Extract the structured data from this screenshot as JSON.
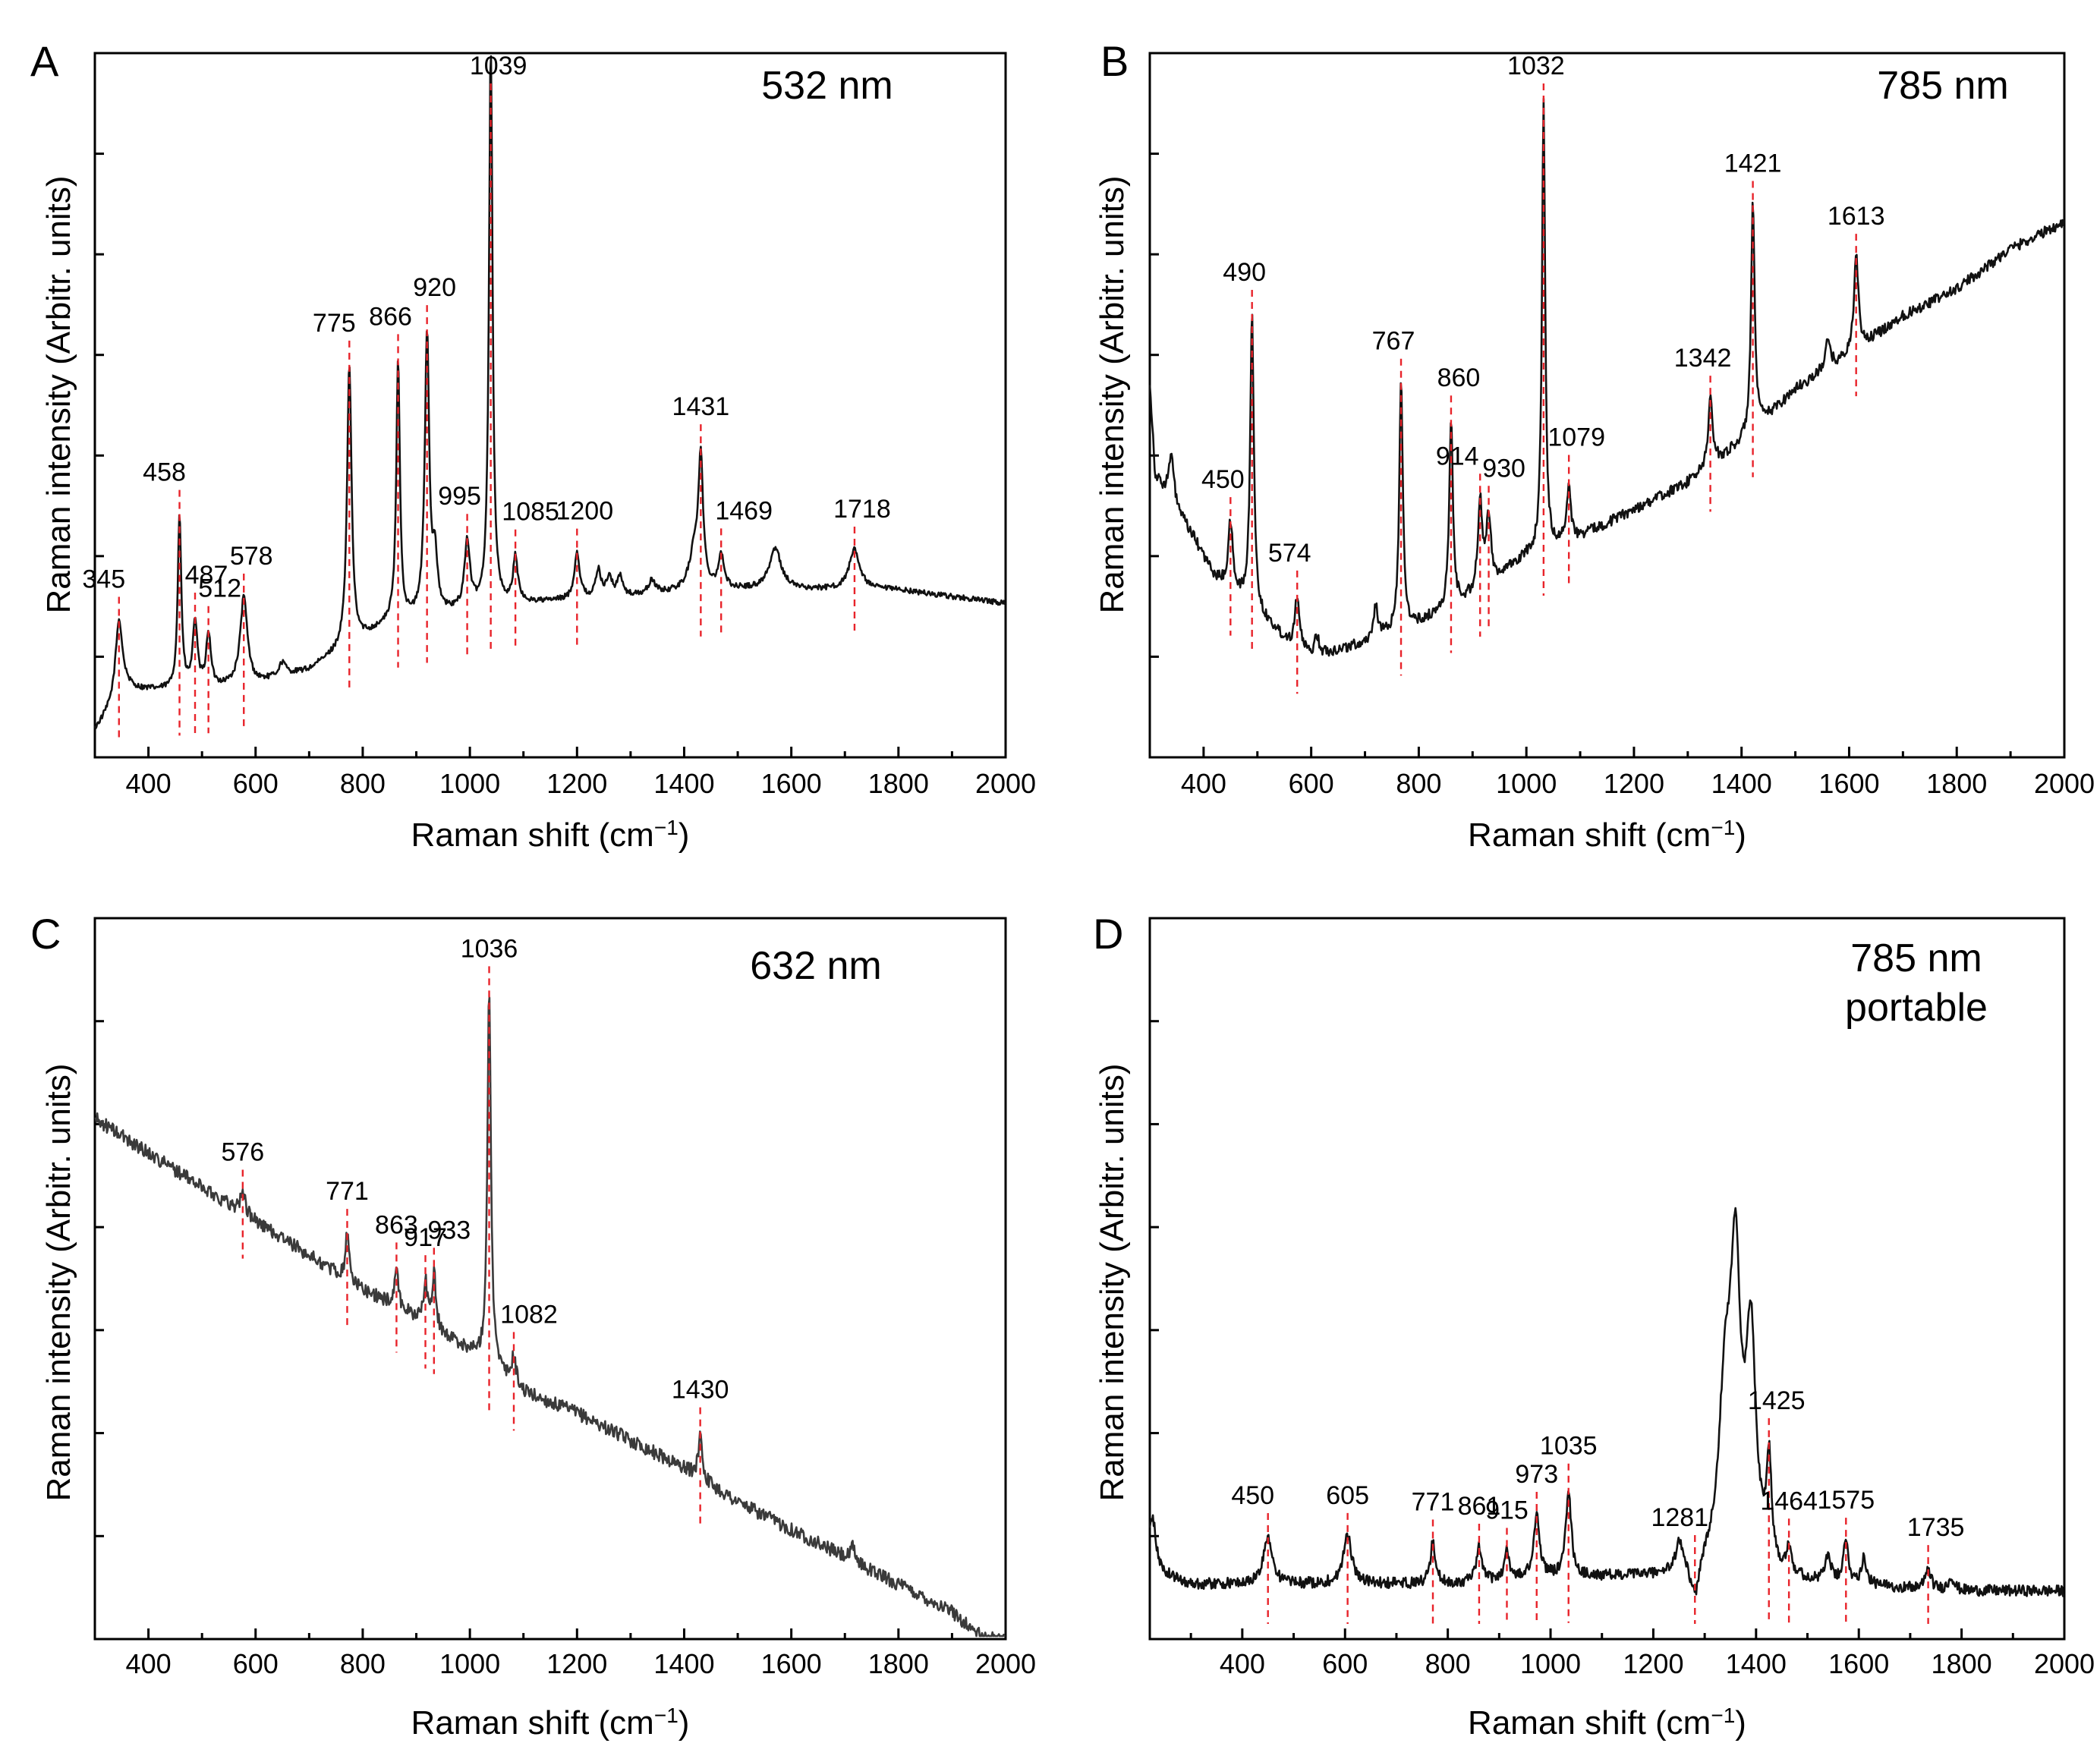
{
  "figure": {
    "x_axis_title_prefix": "Raman shift (cm",
    "x_axis_title_sup": "−1",
    "x_axis_title_suffix": ")",
    "y_axis_title": "Raman intensity (Arbitr. units)"
  },
  "chart_data": [
    {
      "panel": "A",
      "type": "line",
      "laser": "532 nm",
      "xlabel": "Raman shift (cm−1)",
      "ylabel": "Raman intensity (Arbitr. units)",
      "xlim": [
        300,
        2000
      ],
      "xticks": [
        400,
        600,
        800,
        1000,
        1200,
        1400,
        1600,
        1800,
        2000
      ],
      "ylim": [
        0,
        1
      ],
      "line_color": "#111111",
      "baseline": [
        [
          300,
          0.04
        ],
        [
          360,
          0.1
        ],
        [
          450,
          0.1
        ],
        [
          600,
          0.11
        ],
        [
          700,
          0.13
        ],
        [
          760,
          0.16
        ],
        [
          850,
          0.2
        ],
        [
          1000,
          0.22
        ],
        [
          1100,
          0.23
        ],
        [
          1300,
          0.24
        ],
        [
          1450,
          0.25
        ],
        [
          1600,
          0.25
        ],
        [
          1800,
          0.25
        ],
        [
          2000,
          0.23
        ]
      ],
      "bands": [
        [
          345,
          0.12,
          8
        ],
        [
          458,
          0.26,
          4
        ],
        [
          487,
          0.1,
          5
        ],
        [
          512,
          0.08,
          5
        ],
        [
          578,
          0.13,
          8
        ],
        [
          650,
          0.02,
          8
        ],
        [
          775,
          0.42,
          5
        ],
        [
          866,
          0.39,
          4
        ],
        [
          920,
          0.42,
          5
        ],
        [
          935,
          0.08,
          5
        ],
        [
          995,
          0.1,
          6
        ],
        [
          1039,
          0.84,
          4
        ],
        [
          1085,
          0.07,
          5
        ],
        [
          1200,
          0.07,
          6
        ],
        [
          1240,
          0.04,
          6
        ],
        [
          1260,
          0.03,
          6
        ],
        [
          1280,
          0.03,
          6
        ],
        [
          1340,
          0.02,
          8
        ],
        [
          1420,
          0.06,
          12
        ],
        [
          1431,
          0.18,
          5
        ],
        [
          1469,
          0.05,
          6
        ],
        [
          1570,
          0.06,
          14
        ],
        [
          1718,
          0.06,
          12
        ]
      ],
      "noise": 0.004,
      "peaks": [
        {
          "x": 345,
          "label": "345",
          "dx": -20,
          "dy": 30
        },
        {
          "x": 458,
          "label": "458",
          "dx": -20,
          "dy": 40
        },
        {
          "x": 487,
          "label": "487",
          "dx": 15,
          "dy": 30
        },
        {
          "x": 512,
          "label": "512",
          "dx": 15,
          "dy": 30
        },
        {
          "x": 578,
          "label": "578",
          "dx": 10,
          "dy": 30
        },
        {
          "x": 775,
          "label": "775",
          "dx": -20,
          "dy": 30
        },
        {
          "x": 866,
          "label": "866",
          "dx": -10,
          "dy": 30
        },
        {
          "x": 920,
          "label": "920",
          "dx": 10,
          "dy": 50
        },
        {
          "x": 995,
          "label": "995",
          "dx": -10,
          "dy": 30
        },
        {
          "x": 1039,
          "label": "1039",
          "dx": 10,
          "dy": 30
        },
        {
          "x": 1085,
          "label": "1085",
          "dx": 20,
          "dy": 30
        },
        {
          "x": 1200,
          "label": "1200",
          "dx": 10,
          "dy": 30
        },
        {
          "x": 1431,
          "label": "1431",
          "dx": 0,
          "dy": 30
        },
        {
          "x": 1469,
          "label": "1469",
          "dx": 30,
          "dy": 30
        },
        {
          "x": 1718,
          "label": "1718",
          "dx": 10,
          "dy": 30
        }
      ]
    },
    {
      "panel": "B",
      "type": "line",
      "laser": "785 nm",
      "xlabel": "Raman shift (cm−1)",
      "ylabel": "Raman intensity (Arbitr. units)",
      "xlim": [
        300,
        2000
      ],
      "xticks": [
        400,
        600,
        800,
        1000,
        1200,
        1400,
        1600,
        1800,
        2000
      ],
      "ylim": [
        0,
        1
      ],
      "line_color": "#111111",
      "baseline": [
        [
          300,
          0.56
        ],
        [
          310,
          0.42
        ],
        [
          340,
          0.38
        ],
        [
          380,
          0.33
        ],
        [
          420,
          0.27
        ],
        [
          480,
          0.23
        ],
        [
          560,
          0.17
        ],
        [
          600,
          0.15
        ],
        [
          700,
          0.17
        ],
        [
          800,
          0.2
        ],
        [
          900,
          0.24
        ],
        [
          1000,
          0.3
        ],
        [
          1100,
          0.33
        ],
        [
          1200,
          0.37
        ],
        [
          1300,
          0.41
        ],
        [
          1400,
          0.47
        ],
        [
          1500,
          0.55
        ],
        [
          1600,
          0.6
        ],
        [
          1700,
          0.66
        ],
        [
          1800,
          0.7
        ],
        [
          1900,
          0.76
        ],
        [
          2000,
          0.8
        ]
      ],
      "bands": [
        [
          340,
          0.07,
          6
        ],
        [
          450,
          0.1,
          5
        ],
        [
          490,
          0.44,
          4
        ],
        [
          574,
          0.08,
          5
        ],
        [
          610,
          0.03,
          5
        ],
        [
          720,
          0.05,
          5
        ],
        [
          767,
          0.37,
          4
        ],
        [
          860,
          0.28,
          4
        ],
        [
          914,
          0.13,
          5
        ],
        [
          930,
          0.1,
          5
        ],
        [
          1032,
          0.67,
          3.5
        ],
        [
          1079,
          0.09,
          4
        ],
        [
          1342,
          0.1,
          5
        ],
        [
          1421,
          0.34,
          4
        ],
        [
          1560,
          0.04,
          6
        ],
        [
          1613,
          0.14,
          5
        ]
      ],
      "noise": 0.008,
      "peaks": [
        {
          "x": 450,
          "label": "450",
          "dx": -10,
          "dy": 30
        },
        {
          "x": 490,
          "label": "490",
          "dx": -10,
          "dy": 30
        },
        {
          "x": 574,
          "label": "574",
          "dx": -10,
          "dy": 30
        },
        {
          "x": 767,
          "label": "767",
          "dx": -10,
          "dy": 30
        },
        {
          "x": 860,
          "label": "860",
          "dx": 10,
          "dy": 30
        },
        {
          "x": 914,
          "label": "914",
          "dx": -30,
          "dy": 30
        },
        {
          "x": 930,
          "label": "930",
          "dx": 20,
          "dy": 30
        },
        {
          "x": 1032,
          "label": "1032",
          "dx": -10,
          "dy": 30
        },
        {
          "x": 1079,
          "label": "1079",
          "dx": 10,
          "dy": 30
        },
        {
          "x": 1342,
          "label": "1342",
          "dx": -10,
          "dy": 30
        },
        {
          "x": 1421,
          "label": "1421",
          "dx": 0,
          "dy": 30
        },
        {
          "x": 1613,
          "label": "1613",
          "dx": 0,
          "dy": 30
        }
      ]
    },
    {
      "panel": "C",
      "type": "line",
      "laser": "632 nm",
      "xlabel": "Raman shift (cm−1)",
      "ylabel": "Raman intensity (Arbitr. units)",
      "xlim": [
        300,
        2000
      ],
      "xticks": [
        400,
        600,
        800,
        1000,
        1200,
        1400,
        1600,
        1800,
        2000
      ],
      "ylim": [
        0,
        1
      ],
      "line_color": "#3a3a3a",
      "baseline": [
        [
          300,
          0.76
        ],
        [
          400,
          0.71
        ],
        [
          500,
          0.66
        ],
        [
          600,
          0.61
        ],
        [
          700,
          0.56
        ],
        [
          800,
          0.51
        ],
        [
          900,
          0.47
        ],
        [
          1000,
          0.42
        ],
        [
          1100,
          0.36
        ],
        [
          1200,
          0.33
        ],
        [
          1300,
          0.29
        ],
        [
          1400,
          0.25
        ],
        [
          1500,
          0.2
        ],
        [
          1600,
          0.16
        ],
        [
          1700,
          0.12
        ],
        [
          1800,
          0.08
        ],
        [
          1900,
          0.04
        ],
        [
          1960,
          0.0
        ]
      ],
      "bands": [
        [
          576,
          0.03,
          6
        ],
        [
          771,
          0.07,
          4
        ],
        [
          863,
          0.06,
          4
        ],
        [
          917,
          0.06,
          4
        ],
        [
          933,
          0.08,
          4
        ],
        [
          1036,
          0.55,
          4
        ],
        [
          1082,
          0.04,
          5
        ],
        [
          1430,
          0.07,
          4
        ],
        [
          1715,
          0.02,
          5
        ]
      ],
      "noise": 0.01,
      "peaks": [
        {
          "x": 576,
          "label": "576",
          "dx": 0,
          "dy": 30
        },
        {
          "x": 771,
          "label": "771",
          "dx": 0,
          "dy": 30
        },
        {
          "x": 863,
          "label": "863",
          "dx": 0,
          "dy": 30
        },
        {
          "x": 917,
          "label": "917",
          "dx": 0,
          "dy": 30
        },
        {
          "x": 933,
          "label": "933",
          "dx": 20,
          "dy": 30
        },
        {
          "x": 1036,
          "label": "1036",
          "dx": 0,
          "dy": 30
        },
        {
          "x": 1082,
          "label": "1082",
          "dx": 20,
          "dy": 30
        },
        {
          "x": 1430,
          "label": "1430",
          "dx": 0,
          "dy": 30
        }
      ]
    },
    {
      "panel": "D",
      "type": "line",
      "laser": "785 nm",
      "laser2": "portable",
      "xlabel": "Raman shift (cm−1)",
      "ylabel": "Raman intensity (Arbitr. units)",
      "xlim": [
        220,
        2000
      ],
      "xticks": [
        400,
        600,
        800,
        1000,
        1200,
        1400,
        1600,
        1800,
        2000
      ],
      "ylim": [
        0,
        1
      ],
      "line_color": "#111111",
      "baseline": [
        [
          220,
          0.1
        ],
        [
          300,
          0.08
        ],
        [
          500,
          0.08
        ],
        [
          800,
          0.08
        ],
        [
          1000,
          0.09
        ],
        [
          1200,
          0.09
        ],
        [
          1500,
          0.08
        ],
        [
          1800,
          0.07
        ],
        [
          2000,
          0.07
        ]
      ],
      "bands": [
        [
          225,
          0.08,
          8
        ],
        [
          450,
          0.07,
          10
        ],
        [
          605,
          0.07,
          10
        ],
        [
          771,
          0.06,
          6
        ],
        [
          861,
          0.05,
          6
        ],
        [
          915,
          0.04,
          6
        ],
        [
          973,
          0.09,
          7
        ],
        [
          1035,
          0.13,
          6
        ],
        [
          1250,
          0.04,
          8
        ],
        [
          1340,
          0.25,
          15
        ],
        [
          1360,
          0.4,
          12
        ],
        [
          1390,
          0.33,
          12
        ],
        [
          1425,
          0.15,
          6
        ],
        [
          1464,
          0.04,
          6
        ],
        [
          1540,
          0.04,
          6
        ],
        [
          1575,
          0.06,
          6
        ],
        [
          1610,
          0.04,
          6
        ],
        [
          1735,
          0.03,
          6
        ],
        [
          1780,
          0.02,
          6
        ]
      ],
      "dips": [
        [
          1281,
          -0.05,
          8
        ]
      ],
      "noise": 0.008,
      "peaks": [
        {
          "x": 450,
          "label": "450",
          "dx": -20,
          "dy": 30
        },
        {
          "x": 605,
          "label": "605",
          "dx": 0,
          "dy": 30
        },
        {
          "x": 771,
          "label": "771",
          "dx": 0,
          "dy": 30
        },
        {
          "x": 861,
          "label": "861",
          "dx": 0,
          "dy": 30
        },
        {
          "x": 915,
          "label": "915",
          "dx": 0,
          "dy": 30
        },
        {
          "x": 973,
          "label": "973",
          "dx": 0,
          "dy": 30
        },
        {
          "x": 1035,
          "label": "1035",
          "dx": 0,
          "dy": 30
        },
        {
          "x": 1281,
          "label": "1281",
          "dx": -20,
          "dy": 30
        },
        {
          "x": 1425,
          "label": "1425",
          "dx": 10,
          "dy": 30
        },
        {
          "x": 1464,
          "label": "1464",
          "dx": 0,
          "dy": 30
        },
        {
          "x": 1575,
          "label": "1575",
          "dx": 0,
          "dy": 30
        },
        {
          "x": 1735,
          "label": "1735",
          "dx": 10,
          "dy": 30
        }
      ]
    }
  ]
}
